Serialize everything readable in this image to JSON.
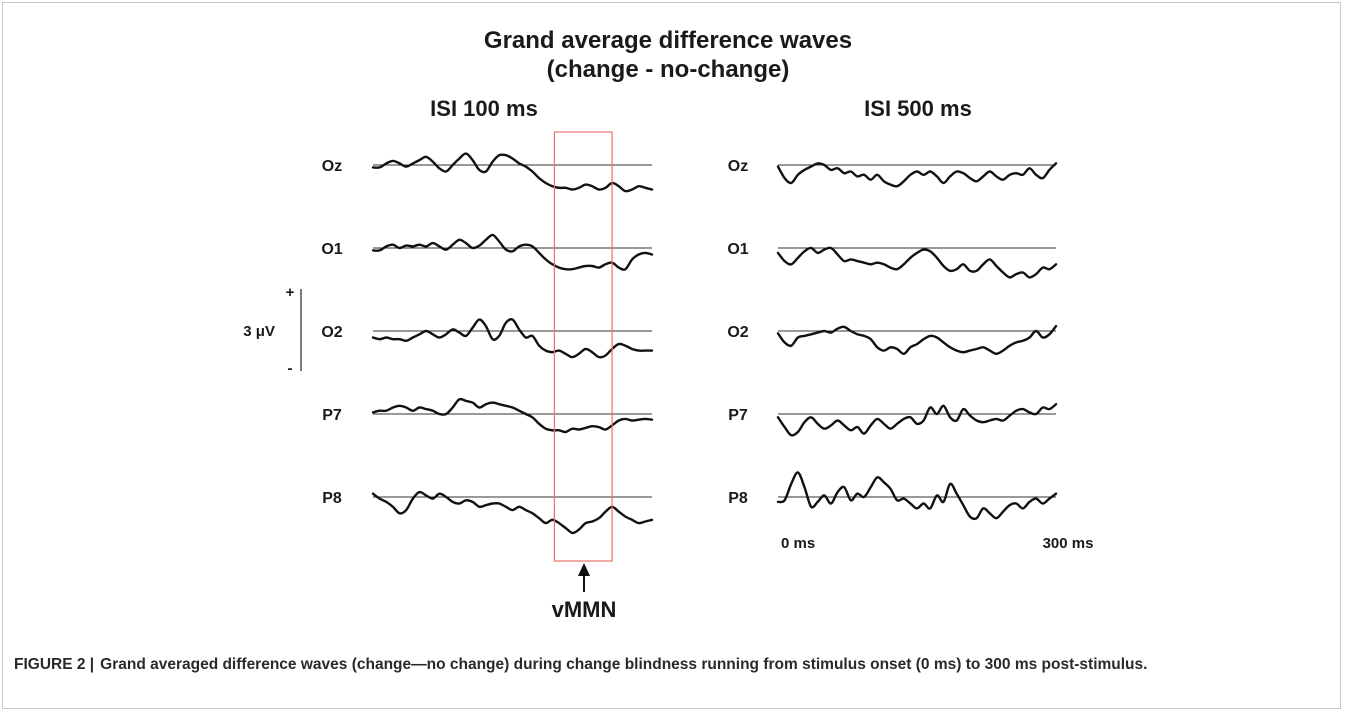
{
  "figure": {
    "title_line1": "Grand average difference waves",
    "title_line2": "(change - no-change)",
    "caption_label": "FIGURE 2 |",
    "caption_text": "Grand averaged difference waves (change—no change) during change blindness running from stimulus onset (0 ms) to 300 ms post-stimulus.",
    "scale_bar": {
      "label": "3 μV",
      "plus": "+",
      "minus": "-",
      "value": 3
    },
    "highlight": {
      "label": "vMMN",
      "color": "#e8736c"
    }
  },
  "chart_data": [
    {
      "type": "line",
      "title": "ISI 100 ms",
      "xlabel": "",
      "ylabel": "",
      "x_range_ms": [
        0,
        300
      ],
      "highlight_window_ms": [
        195,
        257
      ],
      "channels": [
        "Oz",
        "O1",
        "O2",
        "P7",
        "P8"
      ],
      "series": [
        {
          "name": "Oz",
          "values": [
            -0.3,
            -0.3,
            0.2,
            0.5,
            0.2,
            -0.2,
            0.2,
            0.6,
            1.0,
            0.4,
            -0.4,
            -0.8,
            0.0,
            0.8,
            1.4,
            0.6,
            -0.6,
            -0.8,
            0.4,
            1.2,
            1.2,
            0.8,
            0.2,
            -0.2,
            -0.8,
            -1.6,
            -2.2,
            -2.6,
            -2.8,
            -2.8,
            -3.0,
            -2.8,
            -2.4,
            -2.6,
            -3.0,
            -2.8,
            -2.2,
            -2.6,
            -3.2,
            -3.0,
            -2.6,
            -2.8,
            -3.0
          ]
        },
        {
          "name": "O1",
          "values": [
            -0.3,
            -0.3,
            0.2,
            0.4,
            0.0,
            0.3,
            0.2,
            0.4,
            0.2,
            0.6,
            0.2,
            -0.2,
            0.4,
            1.0,
            0.6,
            0.0,
            0.3,
            1.0,
            1.6,
            0.8,
            -0.2,
            -0.4,
            0.2,
            0.4,
            0.2,
            -0.6,
            -1.4,
            -2.0,
            -2.4,
            -2.6,
            -2.6,
            -2.4,
            -2.2,
            -2.2,
            -2.4,
            -2.0,
            -1.8,
            -2.4,
            -2.6,
            -1.4,
            -0.8,
            -0.6,
            -0.8
          ]
        },
        {
          "name": "O2",
          "values": [
            -0.8,
            -1.0,
            -0.8,
            -1.0,
            -1.0,
            -1.2,
            -0.8,
            -0.4,
            0.0,
            -0.4,
            -0.8,
            -0.4,
            0.2,
            -0.2,
            -0.6,
            0.4,
            1.4,
            0.6,
            -1.0,
            -0.6,
            1.0,
            1.4,
            0.2,
            -0.8,
            -0.6,
            -1.8,
            -2.4,
            -2.6,
            -2.4,
            -2.8,
            -3.2,
            -2.8,
            -2.2,
            -2.6,
            -3.2,
            -3.0,
            -2.2,
            -1.6,
            -1.8,
            -2.2,
            -2.4,
            -2.4,
            -2.4
          ]
        },
        {
          "name": "P7",
          "values": [
            0.2,
            0.4,
            0.4,
            0.8,
            1.0,
            0.8,
            0.4,
            0.8,
            0.6,
            0.4,
            0.0,
            0.0,
            0.8,
            1.8,
            1.6,
            1.4,
            0.8,
            1.2,
            1.4,
            1.2,
            1.0,
            0.8,
            0.4,
            0.0,
            -0.4,
            -1.2,
            -1.8,
            -2.0,
            -2.0,
            -2.2,
            -1.8,
            -1.9,
            -1.7,
            -1.5,
            -1.6,
            -1.9,
            -1.4,
            -0.8,
            -0.6,
            -0.8,
            -0.7,
            -0.6,
            -0.7
          ]
        },
        {
          "name": "P8",
          "values": [
            0.4,
            -0.2,
            -0.6,
            -1.2,
            -2.0,
            -1.6,
            -0.2,
            0.6,
            0.2,
            -0.2,
            0.4,
            0.0,
            -0.6,
            -0.8,
            -0.4,
            -0.6,
            -1.2,
            -1.0,
            -0.8,
            -0.8,
            -1.2,
            -1.6,
            -1.2,
            -1.6,
            -2.0,
            -2.6,
            -3.2,
            -2.8,
            -3.2,
            -3.8,
            -4.4,
            -4.0,
            -3.2,
            -3.0,
            -2.6,
            -1.8,
            -1.2,
            -1.8,
            -2.4,
            -2.8,
            -3.2,
            -3.0,
            -2.8
          ]
        }
      ]
    },
    {
      "type": "line",
      "title": "ISI 500 ms",
      "xlabel": "",
      "ylabel": "",
      "x_range_ms": [
        0,
        300
      ],
      "tick_labels": [
        "0 ms",
        "300 ms"
      ],
      "channels": [
        "Oz",
        "O1",
        "O2",
        "P7",
        "P8"
      ],
      "series": [
        {
          "name": "Oz",
          "values": [
            -0.2,
            -1.6,
            -2.2,
            -1.2,
            -0.6,
            -0.2,
            0.2,
            0.0,
            -0.6,
            -0.4,
            -1.0,
            -0.8,
            -1.4,
            -1.2,
            -1.8,
            -1.2,
            -2.0,
            -2.4,
            -2.6,
            -2.0,
            -1.2,
            -0.8,
            -1.2,
            -0.8,
            -1.4,
            -2.2,
            -1.4,
            -0.8,
            -1.0,
            -1.6,
            -2.0,
            -1.4,
            -0.8,
            -1.4,
            -1.8,
            -1.2,
            -1.0,
            -1.2,
            -0.4,
            -1.2,
            -1.6,
            -0.6,
            0.2
          ]
        },
        {
          "name": "O1",
          "values": [
            -0.6,
            -1.6,
            -2.0,
            -1.2,
            -0.4,
            0.0,
            -0.6,
            -0.2,
            0.0,
            -0.8,
            -1.6,
            -1.4,
            -1.6,
            -1.8,
            -2.0,
            -1.8,
            -2.0,
            -2.4,
            -2.6,
            -2.0,
            -1.2,
            -0.6,
            -0.2,
            -0.4,
            -1.2,
            -2.2,
            -2.8,
            -2.6,
            -2.0,
            -2.8,
            -2.8,
            -2.0,
            -1.4,
            -2.2,
            -3.0,
            -3.6,
            -3.2,
            -3.0,
            -3.6,
            -3.2,
            -2.4,
            -2.6,
            -2.0
          ]
        },
        {
          "name": "O2",
          "values": [
            -0.3,
            -1.4,
            -1.8,
            -0.8,
            -0.6,
            -0.4,
            -0.2,
            0.0,
            -0.2,
            0.3,
            0.5,
            0.0,
            -0.4,
            -0.6,
            -1.0,
            -2.0,
            -2.4,
            -2.0,
            -2.2,
            -2.8,
            -2.0,
            -1.6,
            -1.0,
            -0.6,
            -0.8,
            -1.4,
            -2.0,
            -2.4,
            -2.6,
            -2.4,
            -2.2,
            -2.0,
            -2.4,
            -2.8,
            -2.4,
            -1.8,
            -1.4,
            -1.2,
            -0.8,
            0.0,
            -0.8,
            -0.4,
            0.6
          ]
        },
        {
          "name": "P7",
          "values": [
            -0.4,
            -1.6,
            -2.6,
            -2.2,
            -1.0,
            -0.4,
            -1.2,
            -1.8,
            -1.4,
            -0.8,
            -1.4,
            -2.0,
            -1.6,
            -2.4,
            -1.4,
            -0.6,
            -1.2,
            -1.8,
            -1.2,
            -0.6,
            -0.4,
            -1.2,
            -0.8,
            0.8,
            0.0,
            1.0,
            -0.4,
            -0.8,
            0.6,
            -0.2,
            -0.8,
            -1.0,
            -0.8,
            -0.6,
            -0.8,
            -0.2,
            0.4,
            0.6,
            0.2,
            0.0,
            0.8,
            0.6,
            1.2
          ]
        },
        {
          "name": "P8",
          "values": [
            -0.6,
            -0.4,
            1.6,
            3.0,
            1.2,
            -1.2,
            -0.6,
            0.2,
            -0.8,
            0.6,
            1.2,
            -0.4,
            0.4,
            0.0,
            1.2,
            2.4,
            1.8,
            1.0,
            -0.4,
            -0.2,
            -0.8,
            -1.4,
            -0.8,
            -1.4,
            0.2,
            -0.6,
            1.6,
            0.4,
            -1.0,
            -2.4,
            -2.6,
            -1.4,
            -2.0,
            -2.6,
            -1.8,
            -1.0,
            -0.8,
            -1.4,
            -0.6,
            -0.2,
            -0.8,
            -0.2,
            0.4
          ]
        }
      ]
    }
  ]
}
